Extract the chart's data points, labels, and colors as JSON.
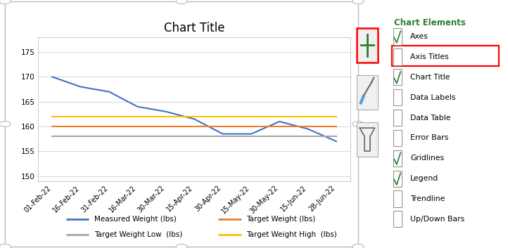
{
  "title": "Chart Title",
  "x_labels": [
    "01-Feb-22",
    "16-Feb-22",
    "31-Feb-22",
    "16-Mar-22",
    "30-Mar-22",
    "15-Apr-22",
    "30-Apr-22",
    "15-May-22",
    "30-May-22",
    "15-Jun-22",
    "28-Jun-22"
  ],
  "measured_weight": [
    170,
    168,
    167,
    164,
    163,
    161.5,
    158.5,
    158.5,
    161,
    159.5,
    157
  ],
  "target_weight": [
    160,
    160,
    160,
    160,
    160,
    160,
    160,
    160,
    160,
    160,
    160
  ],
  "target_low": [
    158,
    158,
    158,
    158,
    158,
    158,
    158,
    158,
    158,
    158,
    158
  ],
  "target_high": [
    162,
    162,
    162,
    162,
    162,
    162,
    162,
    162,
    162,
    162,
    162
  ],
  "measured_color": "#4472C4",
  "target_color": "#ED7D31",
  "target_low_color": "#A5A5A5",
  "target_high_color": "#FFC000",
  "ylim": [
    149,
    178
  ],
  "yticks": [
    150,
    155,
    160,
    165,
    170,
    175
  ],
  "chart_bg": "#FFFFFF",
  "outer_bg": "#FFFFFF",
  "legend_labels_row1": [
    "Measured Weight (lbs)",
    "Target Weight (lbs)"
  ],
  "legend_labels_row2": [
    "Target Weight Low  (lbs)",
    "Target Weight High  (lbs)"
  ],
  "panel_bg": "#FFFFFF",
  "panel_border": "#2E7D32",
  "panel_title_color": "#2E7D32",
  "panel_items": [
    "Axes",
    "Axis Titles",
    "Chart Title",
    "Data Labels",
    "Data Table",
    "Error Bars",
    "Gridlines",
    "Legend",
    "Trendline",
    "Up/Down Bars"
  ],
  "panel_checked": [
    true,
    false,
    true,
    false,
    false,
    false,
    true,
    true,
    false,
    false
  ],
  "axis_titles_highlighted": true,
  "border_color": "#BBBBBB",
  "handle_color": "#BBBBBB"
}
